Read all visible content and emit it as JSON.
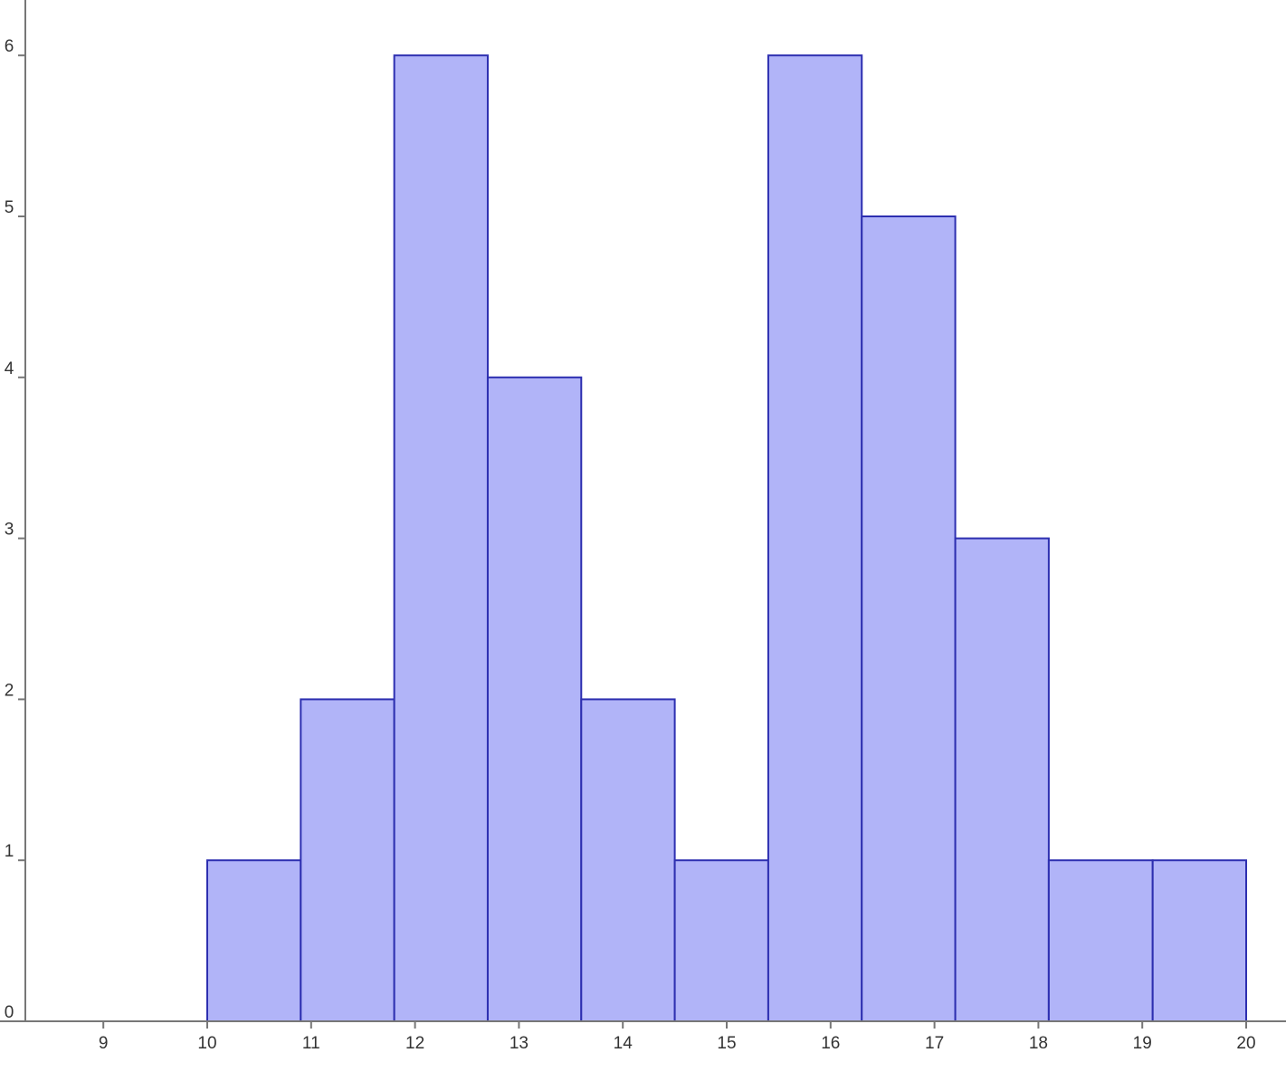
{
  "chart_data": {
    "type": "bar",
    "subtype": "histogram",
    "title": "",
    "xlabel": "",
    "ylabel": "",
    "bins": [
      {
        "x0": 10.0,
        "x1": 10.9,
        "value": 1
      },
      {
        "x0": 10.9,
        "x1": 11.8,
        "value": 2
      },
      {
        "x0": 11.8,
        "x1": 12.7,
        "value": 6
      },
      {
        "x0": 12.7,
        "x1": 13.6,
        "value": 4
      },
      {
        "x0": 13.6,
        "x1": 14.5,
        "value": 2
      },
      {
        "x0": 14.5,
        "x1": 15.4,
        "value": 1
      },
      {
        "x0": 15.4,
        "x1": 16.3,
        "value": 6
      },
      {
        "x0": 16.3,
        "x1": 17.2,
        "value": 5
      },
      {
        "x0": 17.2,
        "x1": 18.1,
        "value": 3
      },
      {
        "x0": 18.1,
        "x1": 19.1,
        "value": 1
      },
      {
        "x0": 19.1,
        "x1": 20.0,
        "value": 1
      }
    ],
    "xlim": [
      8.3,
      20.4
    ],
    "ylim": [
      0,
      6.35
    ],
    "x_ticks": [
      {
        "value": 9,
        "label": "9"
      },
      {
        "value": 10,
        "label": "10"
      },
      {
        "value": 11,
        "label": "11"
      },
      {
        "value": 12,
        "label": "12"
      },
      {
        "value": 13,
        "label": "13"
      },
      {
        "value": 14,
        "label": "14"
      },
      {
        "value": 15,
        "label": "15"
      },
      {
        "value": 16,
        "label": "16"
      },
      {
        "value": 17,
        "label": "17"
      },
      {
        "value": 18,
        "label": "18"
      },
      {
        "value": 19,
        "label": "19"
      },
      {
        "value": 20,
        "label": "20"
      }
    ],
    "y_ticks": [
      {
        "value": 0,
        "label": "0"
      },
      {
        "value": 1,
        "label": "1"
      },
      {
        "value": 2,
        "label": "2"
      },
      {
        "value": 3,
        "label": "3"
      },
      {
        "value": 4,
        "label": "4"
      },
      {
        "value": 5,
        "label": "5"
      },
      {
        "value": 6,
        "label": "6"
      }
    ],
    "grid": false,
    "legend": "none",
    "colors": {
      "bar_fill": "#b1b4f8",
      "bar_stroke": "#2d2fb0",
      "axis": "#777777",
      "tick_text": "#333333"
    }
  }
}
